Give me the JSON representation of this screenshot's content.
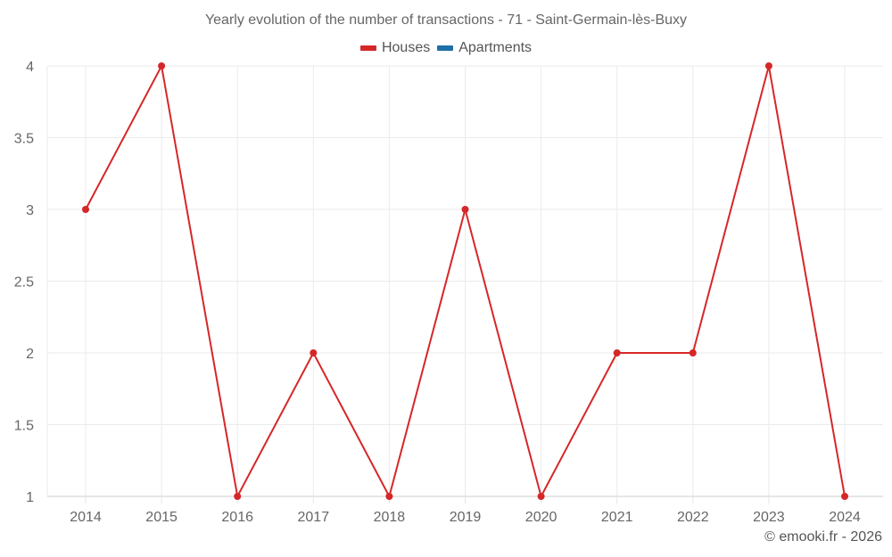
{
  "chart_data": {
    "type": "line",
    "title": "Yearly evolution of the number of transactions - 71 - Saint-Germain-lès-Buxy",
    "categories": [
      "2014",
      "2015",
      "2016",
      "2017",
      "2018",
      "2019",
      "2020",
      "2021",
      "2022",
      "2023",
      "2024"
    ],
    "series": [
      {
        "name": "Houses",
        "color": "#d62728",
        "values": [
          3,
          4,
          1,
          2,
          1,
          3,
          1,
          2,
          2,
          4,
          1
        ]
      },
      {
        "name": "Apartments",
        "color": "#1f6fa8",
        "values": []
      }
    ],
    "xlabel": "",
    "ylabel": "",
    "ylim": [
      1,
      4
    ],
    "yticks": [
      "1",
      "1.5",
      "2",
      "2.5",
      "3",
      "3.5",
      "4"
    ],
    "grid": true,
    "legend_position": "top"
  },
  "header": {
    "title": "Yearly evolution of the number of transactions - 71 - Saint-Germain-lès-Buxy"
  },
  "legend": {
    "items": [
      {
        "label": "Houses",
        "color": "#d62728"
      },
      {
        "label": "Apartments",
        "color": "#1f6fa8"
      }
    ]
  },
  "footer": {
    "credit": "© emooki.fr - 2026"
  }
}
